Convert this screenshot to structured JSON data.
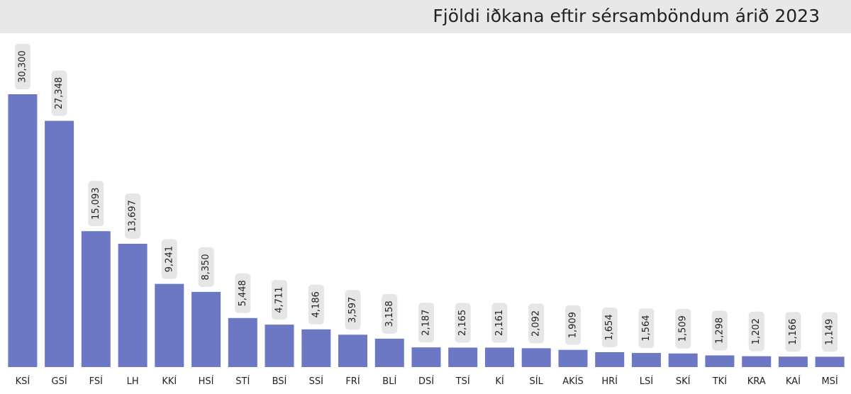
{
  "title": "Fjöldi iðkana eftir sérsamböndum árið 2023",
  "colors": {
    "bar": "#6c78c4",
    "label_bg": "#e6e6e6",
    "title_bg": "#e8e8e8",
    "text": "#222222"
  },
  "chart_data": {
    "type": "bar",
    "title": "Fjöldi iðkana eftir sérsamböndum árið 2023",
    "categories": [
      "KSÍ",
      "GSÍ",
      "FSÍ",
      "LH",
      "KKÍ",
      "HSÍ",
      "STÍ",
      "BSÍ",
      "SSÍ",
      "FRÍ",
      "BLÍ",
      "DSÍ",
      "TSÍ",
      "KÍ",
      "SÍL",
      "AKÍS",
      "HRÍ",
      "LSÍ",
      "SKÍ",
      "TKÍ",
      "KRA",
      "KAÍ",
      "MSÍ"
    ],
    "values": [
      30300,
      27348,
      15093,
      13697,
      9241,
      8350,
      5448,
      4711,
      4186,
      3597,
      3158,
      2187,
      2165,
      2161,
      2092,
      1909,
      1654,
      1564,
      1509,
      1298,
      1202,
      1166,
      1149
    ],
    "value_labels": [
      "30,300",
      "27,348",
      "15,093",
      "13,697",
      "9,241",
      "8,350",
      "5,448",
      "4,711",
      "4,186",
      "3,597",
      "3,158",
      "2,187",
      "2,165",
      "2,161",
      "2,092",
      "1,909",
      "1,654",
      "1,564",
      "1,509",
      "1,298",
      "1,202",
      "1,166",
      "1,149"
    ],
    "xlabel": "",
    "ylabel": "",
    "grid": false,
    "legend": "none"
  }
}
